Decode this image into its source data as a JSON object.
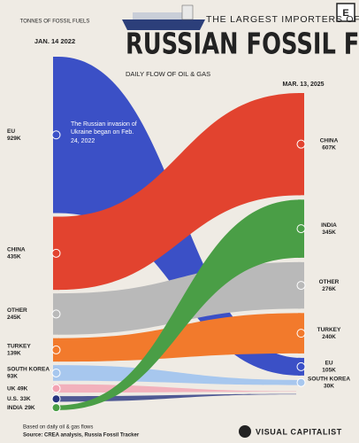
{
  "chart_data": {
    "type": "flow",
    "brand_logo": "E",
    "title_top": "THE LARGEST IMPORTERS OF",
    "title": "RUSSIAN FOSSIL FUELS",
    "subtitle": "DAILY FLOW OF OIL & GAS",
    "left_unit": "TONNES OF FOSSIL FUELS",
    "x": [
      "JAN. 14 2022",
      "MAR. 13, 2025"
    ],
    "annotation": "The Russian invasion of Ukraine began on Feb. 24, 2022",
    "left_order": [
      "EU",
      "CHINA",
      "OTHER",
      "TURKEY",
      "SOUTH KOREA",
      "UK",
      "U.S.",
      "INDIA"
    ],
    "right_order": [
      "CHINA",
      "INDIA",
      "OTHER",
      "TURKEY",
      "EU",
      "SOUTH KOREA"
    ],
    "series": [
      {
        "name": "EU",
        "color": "#3b50c6",
        "values": [
          929000,
          105000
        ],
        "value_labels": [
          "929K",
          "105K"
        ]
      },
      {
        "name": "CHINA",
        "color": "#e2432f",
        "values": [
          435000,
          607000
        ],
        "value_labels": [
          "435K",
          "607K"
        ]
      },
      {
        "name": "OTHER",
        "color": "#b9b9b9",
        "values": [
          245000,
          276000
        ],
        "value_labels": [
          "245K",
          "276K"
        ]
      },
      {
        "name": "TURKEY",
        "color": "#f27a2c",
        "values": [
          139000,
          240000
        ],
        "value_labels": [
          "139K",
          "240K"
        ]
      },
      {
        "name": "SOUTH KOREA",
        "color": "#a7c7ee",
        "values": [
          93000,
          30000
        ],
        "value_labels": [
          "93K",
          "30K"
        ]
      },
      {
        "name": "UK",
        "color": "#f3a2b2",
        "values": [
          49000,
          null
        ],
        "value_labels": [
          "49K",
          null
        ]
      },
      {
        "name": "U.S.",
        "color": "#27347f",
        "values": [
          33000,
          null
        ],
        "value_labels": [
          "33K",
          null
        ]
      },
      {
        "name": "INDIA",
        "color": "#4a9e46",
        "values": [
          29000,
          345000
        ],
        "value_labels": [
          "29K",
          "345K"
        ]
      }
    ],
    "footnote": "Based on daily oil & gas flows",
    "source": "Source: CREA analysis, Russia Fossil Tracker",
    "publisher": "VISUAL CAPITALIST"
  }
}
